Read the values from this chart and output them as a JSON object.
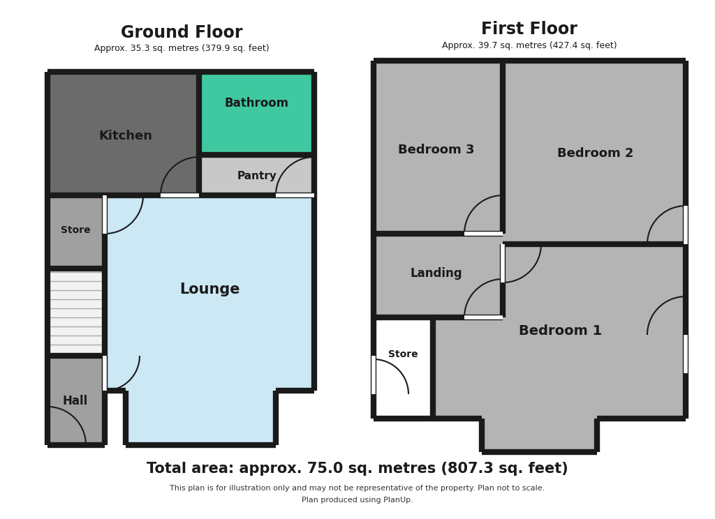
{
  "bg_color": "#ffffff",
  "c_kitchen": "#6b6b6b",
  "c_bath": "#40c9a0",
  "c_pantry": "#c8c8c8",
  "c_lounge": "#cce8f5",
  "c_store_gf": "#a0a0a0",
  "c_hall": "#a0a0a0",
  "c_grey": "#b4b4b4",
  "c_white": "#ffffff",
  "c_wall": "#1a1a1a",
  "c_stair": "#e8e8e8",
  "title_gf": "Ground Floor",
  "subtitle_gf": "Approx. 35.3 sq. metres (379.9 sq. feet)",
  "title_ff": "First Floor",
  "subtitle_ff": "Approx. 39.7 sq. metres (427.4 sq. feet)",
  "total_area": "Total area: approx. 75.0 sq. metres (807.3 sq. feet)",
  "disclaimer1": "This plan is for illustration only and may not be representative of the property. Plan not to scale.",
  "disclaimer2": "Plan produced using PlanUp."
}
